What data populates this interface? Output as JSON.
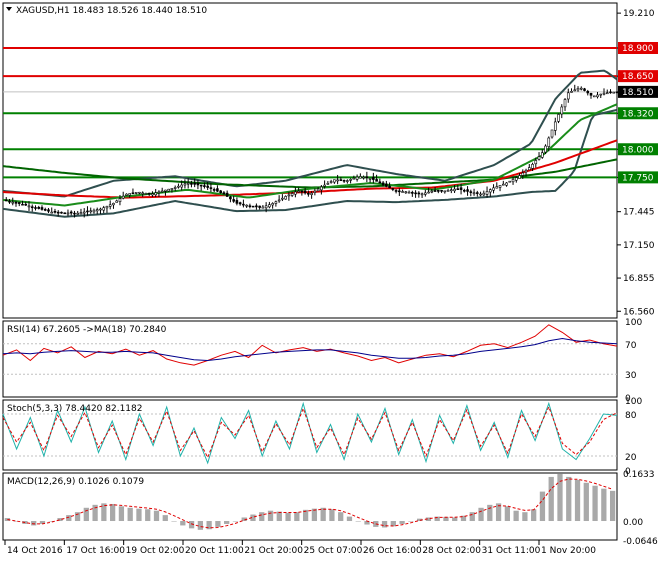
{
  "chart_data": [
    {
      "type": "candlestick",
      "panel": "price",
      "header": {
        "symbol": "XAGUSD,H1",
        "ohlc": "18.483 18.526 18.440 18.510"
      },
      "ylim": [
        16.5,
        19.3
      ],
      "y_ticks": [
        "19.210",
        "18.900",
        "18.650",
        "18.510",
        "18.320",
        "18.000",
        "17.750",
        "17.445",
        "17.150",
        "16.855",
        "16.560"
      ],
      "current_price": 18.51,
      "levels": [
        {
          "price": 18.9,
          "label": "18.900",
          "color": "#e00000"
        },
        {
          "price": 18.65,
          "label": "18.650",
          "color": "#e00000"
        },
        {
          "price": 18.32,
          "label": "18.320",
          "color": "#008000"
        },
        {
          "price": 18.0,
          "label": "18.000",
          "color": "#008000"
        },
        {
          "price": 17.75,
          "label": "17.750",
          "color": "#008000"
        }
      ],
      "x_labels": [
        "14 Oct 2016",
        "17 Oct 16:00",
        "19 Oct 02:00",
        "20 Oct 11:00",
        "21 Oct 20:00",
        "25 Oct 07:00",
        "26 Oct 16:00",
        "28 Oct 02:00",
        "31 Oct 11:00",
        "1 Nov 20:00"
      ],
      "price_path": [
        [
          0,
          17.55
        ],
        [
          4,
          17.5
        ],
        [
          8,
          17.44
        ],
        [
          12,
          17.43
        ],
        [
          16,
          17.47
        ],
        [
          18,
          17.52
        ],
        [
          20,
          17.6
        ],
        [
          22,
          17.62
        ],
        [
          24,
          17.6
        ],
        [
          26,
          17.63
        ],
        [
          28,
          17.66
        ],
        [
          30,
          17.7
        ],
        [
          32,
          17.68
        ],
        [
          34,
          17.65
        ],
        [
          36,
          17.6
        ],
        [
          38,
          17.52
        ],
        [
          40,
          17.5
        ],
        [
          42,
          17.48
        ],
        [
          44,
          17.52
        ],
        [
          46,
          17.58
        ],
        [
          48,
          17.63
        ],
        [
          50,
          17.6
        ],
        [
          52,
          17.67
        ],
        [
          54,
          17.73
        ],
        [
          56,
          17.72
        ],
        [
          58,
          17.76
        ],
        [
          60,
          17.74
        ],
        [
          62,
          17.68
        ],
        [
          64,
          17.63
        ],
        [
          66,
          17.62
        ],
        [
          68,
          17.6
        ],
        [
          70,
          17.63
        ],
        [
          72,
          17.63
        ],
        [
          74,
          17.65
        ],
        [
          76,
          17.62
        ],
        [
          78,
          17.6
        ],
        [
          80,
          17.66
        ],
        [
          82,
          17.7
        ],
        [
          84,
          17.76
        ],
        [
          86,
          17.85
        ],
        [
          88,
          17.98
        ],
        [
          90,
          18.25
        ],
        [
          92,
          18.5
        ],
        [
          94,
          18.55
        ],
        [
          96,
          18.47
        ],
        [
          98,
          18.5
        ],
        [
          100,
          18.51
        ]
      ],
      "moving_averages": [
        {
          "color": "#006400",
          "path": [
            [
              0,
              17.85
            ],
            [
              10,
              17.79
            ],
            [
              20,
              17.74
            ],
            [
              35,
              17.69
            ],
            [
              50,
              17.66
            ],
            [
              60,
              17.67
            ],
            [
              70,
              17.7
            ],
            [
              80,
              17.73
            ],
            [
              90,
              17.8
            ],
            [
              100,
              17.91
            ]
          ]
        },
        {
          "color": "#e00000",
          "path": [
            [
              0,
              17.62
            ],
            [
              10,
              17.59
            ],
            [
              20,
              17.57
            ],
            [
              35,
              17.59
            ],
            [
              50,
              17.62
            ],
            [
              60,
              17.65
            ],
            [
              70,
              17.66
            ],
            [
              80,
              17.72
            ],
            [
              90,
              17.88
            ],
            [
              100,
              18.08
            ]
          ]
        },
        {
          "color": "#1a8c1a",
          "path": [
            [
              0,
              17.55
            ],
            [
              10,
              17.5
            ],
            [
              20,
              17.58
            ],
            [
              30,
              17.64
            ],
            [
              40,
              17.57
            ],
            [
              50,
              17.65
            ],
            [
              60,
              17.7
            ],
            [
              70,
              17.64
            ],
            [
              80,
              17.73
            ],
            [
              88,
              17.95
            ],
            [
              94,
              18.26
            ],
            [
              100,
              18.4
            ]
          ]
        }
      ],
      "bollinger": {
        "color": "#2f4f4f",
        "upper": [
          [
            0,
            17.63
          ],
          [
            10,
            17.58
          ],
          [
            18,
            17.72
          ],
          [
            28,
            17.76
          ],
          [
            38,
            17.67
          ],
          [
            46,
            17.72
          ],
          [
            56,
            17.86
          ],
          [
            64,
            17.78
          ],
          [
            72,
            17.72
          ],
          [
            80,
            17.86
          ],
          [
            86,
            18.05
          ],
          [
            90,
            18.45
          ],
          [
            94,
            18.68
          ],
          [
            98,
            18.7
          ],
          [
            100,
            18.62
          ]
        ],
        "lower": [
          [
            0,
            17.47
          ],
          [
            10,
            17.4
          ],
          [
            18,
            17.43
          ],
          [
            28,
            17.54
          ],
          [
            38,
            17.45
          ],
          [
            46,
            17.46
          ],
          [
            56,
            17.54
          ],
          [
            64,
            17.53
          ],
          [
            72,
            17.55
          ],
          [
            80,
            17.58
          ],
          [
            86,
            17.62
          ],
          [
            90,
            17.63
          ],
          [
            93,
            17.8
          ],
          [
            96,
            18.3
          ],
          [
            100,
            18.35
          ]
        ]
      }
    },
    {
      "type": "line",
      "panel": "rsi",
      "header": "RSI(14) 67.2605  ->MA(18) 70.2840",
      "ylim": [
        0,
        100
      ],
      "y_ticks": [
        "100",
        "70",
        "30",
        "0"
      ],
      "series": [
        {
          "color": "#e00000",
          "values": [
            55,
            62,
            48,
            64,
            58,
            66,
            52,
            60,
            57,
            63,
            55,
            61,
            50,
            45,
            42,
            48,
            55,
            60,
            52,
            68,
            58,
            62,
            65,
            60,
            63,
            58,
            54,
            48,
            52,
            45,
            50,
            55,
            57,
            53,
            60,
            68,
            70,
            65,
            72,
            80,
            95,
            85,
            72,
            75,
            70,
            67
          ]
        },
        {
          "color": "#00008b",
          "values": [
            57,
            58,
            57,
            59,
            60,
            61,
            60,
            59,
            59,
            60,
            59,
            58,
            55,
            52,
            49,
            48,
            50,
            53,
            55,
            57,
            59,
            60,
            61,
            62,
            62,
            60,
            58,
            55,
            53,
            51,
            51,
            52,
            54,
            55,
            57,
            60,
            62,
            64,
            66,
            69,
            74,
            77,
            74,
            72,
            71,
            70
          ]
        }
      ]
    },
    {
      "type": "line",
      "panel": "stochastic",
      "header": "Stoch(5,3,3) 78.4420 82.1182",
      "ylim": [
        0,
        100
      ],
      "y_ticks": [
        "100",
        "80",
        "20",
        "0"
      ],
      "series": [
        {
          "color": "#20b2aa",
          "values": [
            80,
            30,
            75,
            20,
            85,
            40,
            90,
            25,
            70,
            15,
            80,
            35,
            90,
            20,
            60,
            10,
            75,
            45,
            85,
            20,
            70,
            30,
            95,
            25,
            65,
            15,
            80,
            40,
            88,
            22,
            72,
            12,
            78,
            38,
            92,
            28,
            68,
            18,
            85,
            42,
            95,
            30,
            15,
            45,
            80,
            78
          ]
        },
        {
          "color": "#e00000",
          "values": [
            75,
            40,
            68,
            28,
            78,
            48,
            82,
            32,
            64,
            22,
            74,
            40,
            84,
            28,
            56,
            18,
            68,
            50,
            78,
            26,
            66,
            36,
            88,
            32,
            60,
            22,
            74,
            44,
            82,
            28,
            68,
            20,
            72,
            42,
            86,
            34,
            64,
            24,
            80,
            48,
            90,
            38,
            22,
            40,
            72,
            82
          ]
        }
      ]
    },
    {
      "type": "bar",
      "panel": "macd",
      "header": "MACD(12,26,9) 0.1026 0.1079",
      "ylim": [
        -0.0646,
        0.1633
      ],
      "y_ticks": [
        "0.1633",
        "0.00",
        "-0.0646"
      ],
      "histogram_color": "#a9a9a9",
      "signal_color": "#e00000",
      "histogram": [
        0.01,
        0.0,
        -0.01,
        -0.015,
        -0.01,
        0.0,
        0.01,
        0.02,
        0.03,
        0.045,
        0.055,
        0.06,
        0.058,
        0.05,
        0.045,
        0.042,
        0.04,
        0.035,
        0.02,
        0.0,
        -0.015,
        -0.025,
        -0.03,
        -0.028,
        -0.02,
        -0.01,
        0.0,
        0.012,
        0.022,
        0.03,
        0.035,
        0.032,
        0.028,
        0.03,
        0.038,
        0.042,
        0.045,
        0.04,
        0.03,
        0.015,
        0.0,
        -0.012,
        -0.02,
        -0.022,
        -0.018,
        -0.01,
        0.0,
        0.008,
        0.012,
        0.015,
        0.014,
        0.012,
        0.018,
        0.03,
        0.045,
        0.055,
        0.06,
        0.05,
        0.035,
        0.03,
        0.04,
        0.1,
        0.15,
        0.16,
        0.15,
        0.14,
        0.13,
        0.12,
        0.11,
        0.1026
      ],
      "signal": [
        0.005,
        0.0,
        -0.005,
        -0.01,
        -0.01,
        -0.004,
        0.004,
        0.013,
        0.023,
        0.035,
        0.045,
        0.052,
        0.055,
        0.053,
        0.05,
        0.047,
        0.044,
        0.04,
        0.031,
        0.018,
        0.004,
        -0.01,
        -0.019,
        -0.023,
        -0.022,
        -0.016,
        -0.008,
        0.003,
        0.013,
        0.021,
        0.027,
        0.029,
        0.029,
        0.029,
        0.033,
        0.037,
        0.04,
        0.04,
        0.035,
        0.025,
        0.012,
        0.0,
        -0.01,
        -0.016,
        -0.017,
        -0.013,
        -0.006,
        0.002,
        0.008,
        0.012,
        0.013,
        0.013,
        0.015,
        0.022,
        0.033,
        0.044,
        0.052,
        0.051,
        0.043,
        0.036,
        0.038,
        0.07,
        0.11,
        0.135,
        0.143,
        0.142,
        0.136,
        0.128,
        0.118,
        0.1079
      ]
    }
  ]
}
